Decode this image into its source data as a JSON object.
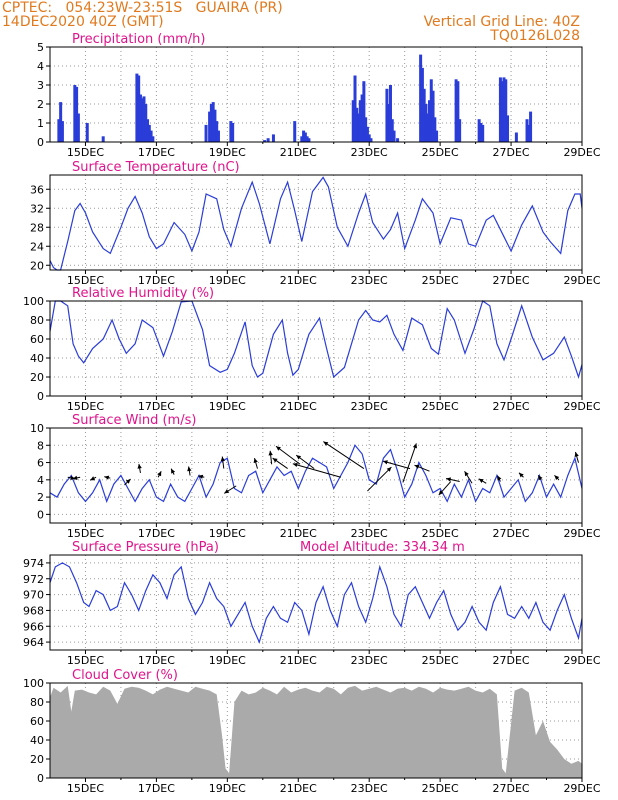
{
  "header": {
    "line1_left": "CPTEC:   054:23W-23:51S   GUAIRA (PR)",
    "line2_left": "14DEC2020 40Z (GMT)",
    "line1_right": "Vertical Grid Line: 40Z",
    "line2_right": "TQ0126L028",
    "color": "#e07a1f"
  },
  "chart_data": [
    {
      "type": "bar",
      "title": "Precipitation (mm/h)",
      "ylim": [
        0,
        5
      ],
      "yticks": [
        0,
        1,
        2,
        3,
        4,
        5
      ],
      "xticks": [
        "15DEC",
        "17DEC",
        "19DEC",
        "21DEC",
        "23DEC",
        "25DEC",
        "27DEC",
        "29DEC"
      ],
      "xrange_days": [
        14.0,
        29.0
      ],
      "bar_color": "#2a3dd8",
      "x": [
        14.25,
        14.3,
        14.35,
        14.7,
        14.75,
        14.8,
        15.05,
        15.5,
        16.45,
        16.5,
        16.55,
        16.6,
        16.65,
        16.7,
        16.75,
        16.8,
        16.85,
        16.9,
        18.4,
        18.5,
        18.55,
        18.6,
        18.65,
        18.7,
        18.75,
        19.1,
        19.15,
        20.05,
        20.15,
        20.3,
        20.9,
        21.1,
        21.15,
        21.2,
        21.25,
        21.3,
        22.55,
        22.6,
        22.65,
        22.7,
        22.75,
        22.8,
        22.85,
        22.9,
        22.95,
        23.0,
        23.05,
        23.5,
        23.55,
        23.6,
        23.65,
        23.7,
        23.8,
        24.45,
        24.5,
        24.55,
        24.6,
        24.65,
        24.7,
        24.75,
        24.8,
        24.85,
        24.9,
        25.45,
        25.5,
        25.55,
        26.1,
        26.15,
        26.2,
        26.7,
        26.75,
        26.8,
        26.85,
        26.9,
        27.15,
        27.45,
        27.5,
        27.55
      ],
      "values": [
        1.2,
        2.1,
        1.1,
        3.0,
        2.9,
        1.5,
        1.0,
        0.3,
        3.6,
        3.5,
        2.5,
        2.3,
        2.4,
        2.0,
        1.2,
        0.9,
        0.6,
        0.3,
        0.9,
        1.6,
        2.0,
        2.1,
        1.7,
        1.1,
        0.6,
        1.1,
        1.0,
        0.1,
        0.2,
        0.4,
        1.1,
        0.3,
        0.6,
        0.5,
        0.3,
        0.2,
        2.2,
        3.5,
        1.8,
        1.5,
        2.2,
        2.5,
        3.2,
        1.3,
        0.8,
        0.4,
        0.2,
        2.8,
        2.0,
        3.0,
        1.2,
        0.6,
        0.2,
        4.6,
        3.9,
        2.8,
        2.0,
        1.5,
        2.2,
        3.3,
        2.7,
        1.3,
        0.6,
        3.3,
        3.2,
        1.2,
        1.2,
        1.0,
        0.9,
        3.4,
        3.2,
        3.4,
        3.3,
        1.4,
        0.5,
        1.2,
        0.9,
        1.6
      ]
    },
    {
      "type": "line",
      "title": "Surface Temperature (nC)",
      "ylim": [
        19,
        39
      ],
      "yticks": [
        20,
        24,
        28,
        32,
        36
      ],
      "xticks": [
        "15DEC",
        "17DEC",
        "19DEC",
        "21DEC",
        "23DEC",
        "25DEC",
        "27DEC",
        "29DEC"
      ],
      "xrange_days": [
        14.0,
        29.0
      ],
      "line_color": "#2a3dd8",
      "x": [
        14.0,
        14.1,
        14.2,
        14.3,
        14.5,
        14.7,
        14.85,
        15.0,
        15.2,
        15.5,
        15.7,
        16.0,
        16.2,
        16.4,
        16.6,
        16.8,
        17.0,
        17.2,
        17.5,
        17.8,
        18.0,
        18.2,
        18.4,
        18.7,
        18.9,
        19.1,
        19.4,
        19.7,
        19.9,
        20.2,
        20.5,
        20.7,
        20.9,
        21.1,
        21.4,
        21.7,
        21.85,
        22.1,
        22.4,
        22.7,
        22.9,
        23.1,
        23.4,
        23.6,
        23.8,
        24.0,
        24.3,
        24.5,
        24.8,
        25.0,
        25.3,
        25.6,
        25.8,
        26.0,
        26.3,
        26.5,
        26.8,
        27.0,
        27.3,
        27.6,
        27.9,
        28.1,
        28.4,
        28.6,
        28.8,
        28.95,
        29.0
      ],
      "values": [
        21.0,
        19.5,
        19.0,
        19.0,
        25.0,
        31.5,
        33.0,
        31.0,
        27.0,
        23.5,
        22.5,
        28.0,
        32.0,
        34.5,
        31.0,
        26.0,
        23.5,
        24.5,
        29.0,
        26.5,
        23.0,
        27.0,
        35.0,
        34.0,
        27.5,
        24.0,
        32.0,
        37.5,
        33.0,
        24.5,
        34.0,
        37.5,
        31.5,
        25.0,
        35.5,
        38.5,
        36.5,
        28.0,
        24.0,
        31.0,
        35.0,
        29.0,
        25.5,
        27.5,
        31.0,
        23.5,
        29.5,
        34.0,
        31.0,
        24.5,
        30.0,
        29.5,
        24.5,
        24.0,
        29.5,
        30.5,
        26.0,
        23.0,
        28.5,
        32.5,
        27.0,
        25.0,
        22.5,
        31.5,
        35.0,
        35.0,
        32.0
      ]
    },
    {
      "type": "line",
      "title": "Relative Humidity (%)",
      "ylim": [
        0,
        100
      ],
      "yticks": [
        0,
        20,
        40,
        60,
        80,
        100
      ],
      "xticks": [
        "15DEC",
        "17DEC",
        "19DEC",
        "21DEC",
        "23DEC",
        "25DEC",
        "27DEC",
        "29DEC"
      ],
      "xrange_days": [
        14.0,
        29.0
      ],
      "line_color": "#2a3dd8",
      "x": [
        14.0,
        14.15,
        14.3,
        14.5,
        14.65,
        14.8,
        14.95,
        15.2,
        15.5,
        15.75,
        15.95,
        16.15,
        16.4,
        16.6,
        16.9,
        17.2,
        17.45,
        17.7,
        18.0,
        18.3,
        18.5,
        18.8,
        19.0,
        19.2,
        19.5,
        19.7,
        19.85,
        20.0,
        20.3,
        20.55,
        20.7,
        20.85,
        21.0,
        21.3,
        21.6,
        21.8,
        22.0,
        22.3,
        22.5,
        22.7,
        22.9,
        23.1,
        23.3,
        23.5,
        23.7,
        23.95,
        24.2,
        24.5,
        24.75,
        24.95,
        25.2,
        25.4,
        25.7,
        25.95,
        26.2,
        26.4,
        26.6,
        26.8,
        27.0,
        27.3,
        27.6,
        27.9,
        28.2,
        28.5,
        28.7,
        28.9,
        29.0
      ],
      "values": [
        68,
        100,
        100,
        95,
        55,
        42,
        35,
        50,
        60,
        80,
        60,
        45,
        55,
        80,
        72,
        42,
        68,
        99,
        100,
        70,
        32,
        25,
        28,
        45,
        78,
        32,
        20,
        24,
        65,
        80,
        45,
        22,
        28,
        65,
        82,
        50,
        20,
        30,
        55,
        80,
        90,
        80,
        78,
        85,
        65,
        48,
        82,
        75,
        50,
        44,
        92,
        80,
        45,
        70,
        100,
        95,
        55,
        38,
        60,
        95,
        62,
        38,
        45,
        62,
        42,
        20,
        33
      ]
    },
    {
      "type": "line",
      "title": "Surface Wind (m/s)",
      "ylim": [
        -1,
        10
      ],
      "yticks": [
        0,
        2,
        4,
        6,
        8,
        10
      ],
      "xticks": [
        "15DEC",
        "17DEC",
        "19DEC",
        "21DEC",
        "23DEC",
        "25DEC",
        "27DEC",
        "29DEC"
      ],
      "xrange_days": [
        14.0,
        29.0
      ],
      "line_color": "#2a3dd8",
      "x": [
        14.0,
        14.2,
        14.4,
        14.6,
        14.8,
        15.0,
        15.2,
        15.4,
        15.6,
        15.8,
        16.0,
        16.2,
        16.4,
        16.6,
        16.8,
        17.0,
        17.2,
        17.4,
        17.6,
        17.8,
        18.0,
        18.2,
        18.4,
        18.6,
        18.8,
        19.0,
        19.2,
        19.4,
        19.6,
        19.8,
        20.0,
        20.2,
        20.4,
        20.6,
        20.8,
        21.0,
        21.2,
        21.4,
        21.6,
        21.8,
        22.0,
        22.2,
        22.4,
        22.6,
        22.8,
        23.0,
        23.2,
        23.4,
        23.6,
        23.8,
        24.0,
        24.2,
        24.4,
        24.6,
        24.8,
        25.0,
        25.2,
        25.4,
        25.6,
        25.8,
        26.0,
        26.2,
        26.4,
        26.6,
        26.8,
        27.0,
        27.2,
        27.4,
        27.6,
        27.8,
        28.0,
        28.2,
        28.4,
        28.6,
        28.8,
        29.0
      ],
      "values": [
        2.5,
        2.0,
        3.5,
        4.5,
        2.5,
        1.5,
        2.5,
        4.0,
        1.5,
        3.5,
        4.5,
        3.0,
        1.5,
        3.0,
        4.0,
        2.0,
        1.5,
        3.5,
        2.0,
        1.5,
        3.0,
        4.5,
        2.0,
        3.5,
        6.0,
        6.5,
        3.0,
        2.5,
        4.5,
        5.0,
        2.5,
        4.0,
        5.5,
        4.5,
        5.0,
        3.0,
        5.0,
        6.5,
        6.0,
        5.5,
        3.0,
        4.5,
        6.0,
        8.0,
        7.0,
        4.0,
        3.5,
        6.5,
        7.5,
        5.0,
        2.0,
        3.5,
        6.0,
        4.5,
        2.5,
        3.0,
        1.5,
        3.5,
        2.0,
        4.0,
        1.5,
        3.0,
        2.5,
        4.5,
        2.0,
        3.0,
        4.0,
        1.5,
        2.5,
        4.5,
        2.0,
        3.5,
        2.0,
        4.5,
        6.5,
        3.0
      ],
      "arrows": [
        {
          "day": 14.5,
          "speed": 4.3,
          "dx": 0.5,
          "dy": -0.1
        },
        {
          "day": 14.85,
          "speed": 4.3,
          "dx": -0.5,
          "dy": -0.1
        },
        {
          "day": 15.3,
          "speed": 4.3,
          "dx": -0.4,
          "dy": -0.2
        },
        {
          "day": 15.7,
          "speed": 4.2,
          "dx": -0.4,
          "dy": 0.1
        },
        {
          "day": 16.1,
          "speed": 3.4,
          "dx": 0.4,
          "dy": 0.4
        },
        {
          "day": 16.55,
          "speed": 4.8,
          "dx": -0.1,
          "dy": 0.6
        },
        {
          "day": 17.05,
          "speed": 4.3,
          "dx": 0.2,
          "dy": 0.4
        },
        {
          "day": 17.5,
          "speed": 4.6,
          "dx": -0.2,
          "dy": 0.4
        },
        {
          "day": 17.95,
          "speed": 4.5,
          "dx": -0.1,
          "dy": 0.6
        },
        {
          "day": 18.35,
          "speed": 4.3,
          "dx": -0.4,
          "dy": 0.1
        },
        {
          "day": 18.9,
          "speed": 5.3,
          "dx": -0.1,
          "dy": 0.8
        },
        {
          "day": 19.25,
          "speed": 3.3,
          "dx": -0.8,
          "dy": -0.5
        },
        {
          "day": 19.85,
          "speed": 5.3,
          "dx": -0.2,
          "dy": 0.7
        },
        {
          "day": 20.25,
          "speed": 5.8,
          "dx": -0.1,
          "dy": 0.9
        },
        {
          "day": 20.7,
          "speed": 5.3,
          "dx": -1.0,
          "dy": 0.7
        },
        {
          "day": 21.05,
          "speed": 5.8,
          "dx": -1.6,
          "dy": 1.2
        },
        {
          "day": 21.45,
          "speed": 5.3,
          "dx": -1.2,
          "dy": 0.9
        },
        {
          "day": 22.2,
          "speed": 4.3,
          "dx": -3.2,
          "dy": 0.9
        },
        {
          "day": 22.85,
          "speed": 5.3,
          "dx": -2.7,
          "dy": 1.8
        },
        {
          "day": 22.95,
          "speed": 2.7,
          "dx": 1.6,
          "dy": 1.6
        },
        {
          "day": 23.95,
          "speed": 3.7,
          "dx": 0.9,
          "dy": 2.6
        },
        {
          "day": 24.15,
          "speed": 5.3,
          "dx": -1.8,
          "dy": 0.5
        },
        {
          "day": 24.7,
          "speed": 5.0,
          "dx": -1.0,
          "dy": 0.4
        },
        {
          "day": 25.3,
          "speed": 3.8,
          "dx": -0.8,
          "dy": -0.9
        },
        {
          "day": 25.55,
          "speed": 3.8,
          "dx": -0.9,
          "dy": 0.2
        },
        {
          "day": 25.9,
          "speed": 3.6,
          "dx": -0.5,
          "dy": 0.8
        },
        {
          "day": 26.3,
          "speed": 3.6,
          "dx": -0.5,
          "dy": 0.3
        },
        {
          "day": 26.7,
          "speed": 3.8,
          "dx": -0.2,
          "dy": 0.4
        },
        {
          "day": 27.35,
          "speed": 4.3,
          "dx": -0.3,
          "dy": 0.3
        },
        {
          "day": 27.85,
          "speed": 4.0,
          "dx": -0.2,
          "dy": 0.3
        },
        {
          "day": 28.35,
          "speed": 4.0,
          "dx": -0.3,
          "dy": 0.3
        },
        {
          "day": 28.9,
          "speed": 6.0,
          "dx": -0.2,
          "dy": 0.7
        }
      ]
    },
    {
      "type": "line",
      "title": "Surface Pressure (hPa)",
      "annotation": "Model Altitude: 334.34  m",
      "ylim": [
        963,
        975
      ],
      "yticks": [
        964,
        966,
        968,
        970,
        972,
        974
      ],
      "xticks": [
        "15DEC",
        "17DEC",
        "19DEC",
        "21DEC",
        "23DEC",
        "25DEC",
        "27DEC",
        "29DEC"
      ],
      "xrange_days": [
        14.0,
        29.0
      ],
      "line_color": "#2a3dd8",
      "x": [
        14.0,
        14.15,
        14.35,
        14.55,
        14.75,
        14.95,
        15.1,
        15.3,
        15.5,
        15.7,
        15.9,
        16.1,
        16.3,
        16.5,
        16.7,
        16.9,
        17.1,
        17.3,
        17.5,
        17.7,
        17.9,
        18.1,
        18.3,
        18.5,
        18.7,
        18.9,
        19.1,
        19.3,
        19.5,
        19.7,
        19.9,
        20.1,
        20.3,
        20.5,
        20.7,
        20.9,
        21.1,
        21.3,
        21.5,
        21.7,
        21.9,
        22.1,
        22.3,
        22.5,
        22.7,
        22.9,
        23.1,
        23.3,
        23.5,
        23.7,
        23.9,
        24.1,
        24.3,
        24.5,
        24.7,
        24.9,
        25.1,
        25.3,
        25.5,
        25.7,
        25.9,
        26.1,
        26.3,
        26.5,
        26.7,
        26.9,
        27.1,
        27.3,
        27.5,
        27.7,
        27.9,
        28.1,
        28.3,
        28.5,
        28.7,
        28.9,
        29.0
      ],
      "values": [
        971.5,
        973.5,
        974.0,
        973.5,
        971.5,
        969.0,
        968.5,
        970.5,
        970.0,
        968.0,
        968.5,
        971.5,
        970.0,
        968.0,
        970.5,
        972.5,
        971.5,
        969.5,
        972.5,
        973.5,
        969.5,
        967.5,
        969.0,
        971.5,
        969.5,
        968.5,
        966.0,
        967.5,
        969.0,
        966.0,
        964.0,
        967.0,
        968.5,
        967.0,
        966.5,
        969.0,
        968.0,
        965.0,
        969.0,
        971.0,
        968.0,
        966.0,
        970.0,
        971.5,
        968.5,
        966.5,
        969.5,
        973.5,
        971.0,
        967.5,
        966.0,
        970.0,
        971.0,
        969.0,
        967.0,
        969.0,
        970.5,
        967.5,
        965.5,
        966.5,
        968.5,
        966.5,
        965.5,
        969.0,
        971.0,
        967.5,
        967.0,
        968.5,
        967.0,
        969.0,
        966.5,
        965.5,
        968.0,
        970.0,
        967.0,
        964.5,
        967.0
      ]
    },
    {
      "type": "area",
      "title": "Cloud Cover (%)",
      "ylim": [
        0,
        100
      ],
      "yticks": [
        0,
        20,
        40,
        60,
        80,
        100
      ],
      "xticks": [
        "15DEC",
        "17DEC",
        "19DEC",
        "21DEC",
        "23DEC",
        "25DEC",
        "27DEC",
        "29DEC"
      ],
      "xrange_days": [
        14.0,
        29.0
      ],
      "fill_color": "#aaaaaa",
      "x": [
        14.0,
        14.1,
        14.3,
        14.5,
        14.6,
        14.7,
        14.9,
        15.1,
        15.3,
        15.5,
        15.7,
        15.9,
        16.1,
        16.3,
        16.5,
        16.7,
        16.9,
        17.1,
        17.3,
        17.5,
        17.7,
        17.9,
        18.1,
        18.3,
        18.5,
        18.7,
        18.85,
        18.95,
        19.05,
        19.2,
        19.4,
        19.6,
        19.8,
        20.0,
        20.2,
        20.4,
        20.6,
        20.8,
        21.0,
        21.2,
        21.4,
        21.6,
        21.8,
        22.0,
        22.2,
        22.4,
        22.6,
        22.8,
        23.0,
        23.2,
        23.4,
        23.6,
        23.8,
        24.0,
        24.2,
        24.4,
        24.6,
        24.8,
        25.0,
        25.2,
        25.4,
        25.6,
        25.8,
        26.0,
        26.2,
        26.4,
        26.6,
        26.75,
        26.85,
        26.95,
        27.1,
        27.3,
        27.5,
        27.7,
        27.9,
        28.1,
        28.3,
        28.5,
        28.7,
        28.9,
        29.0
      ],
      "values": [
        85,
        95,
        90,
        97,
        70,
        92,
        93,
        90,
        88,
        96,
        92,
        78,
        94,
        96,
        95,
        92,
        88,
        93,
        96,
        94,
        92,
        90,
        96,
        94,
        92,
        88,
        45,
        10,
        5,
        80,
        92,
        88,
        90,
        95,
        92,
        88,
        96,
        90,
        93,
        95,
        92,
        90,
        96,
        94,
        88,
        95,
        97,
        92,
        94,
        96,
        93,
        90,
        94,
        95,
        92,
        96,
        94,
        90,
        95,
        93,
        92,
        94,
        96,
        92,
        90,
        94,
        88,
        10,
        5,
        40,
        92,
        95,
        90,
        45,
        60,
        38,
        30,
        20,
        15,
        18,
        15
      ]
    }
  ]
}
